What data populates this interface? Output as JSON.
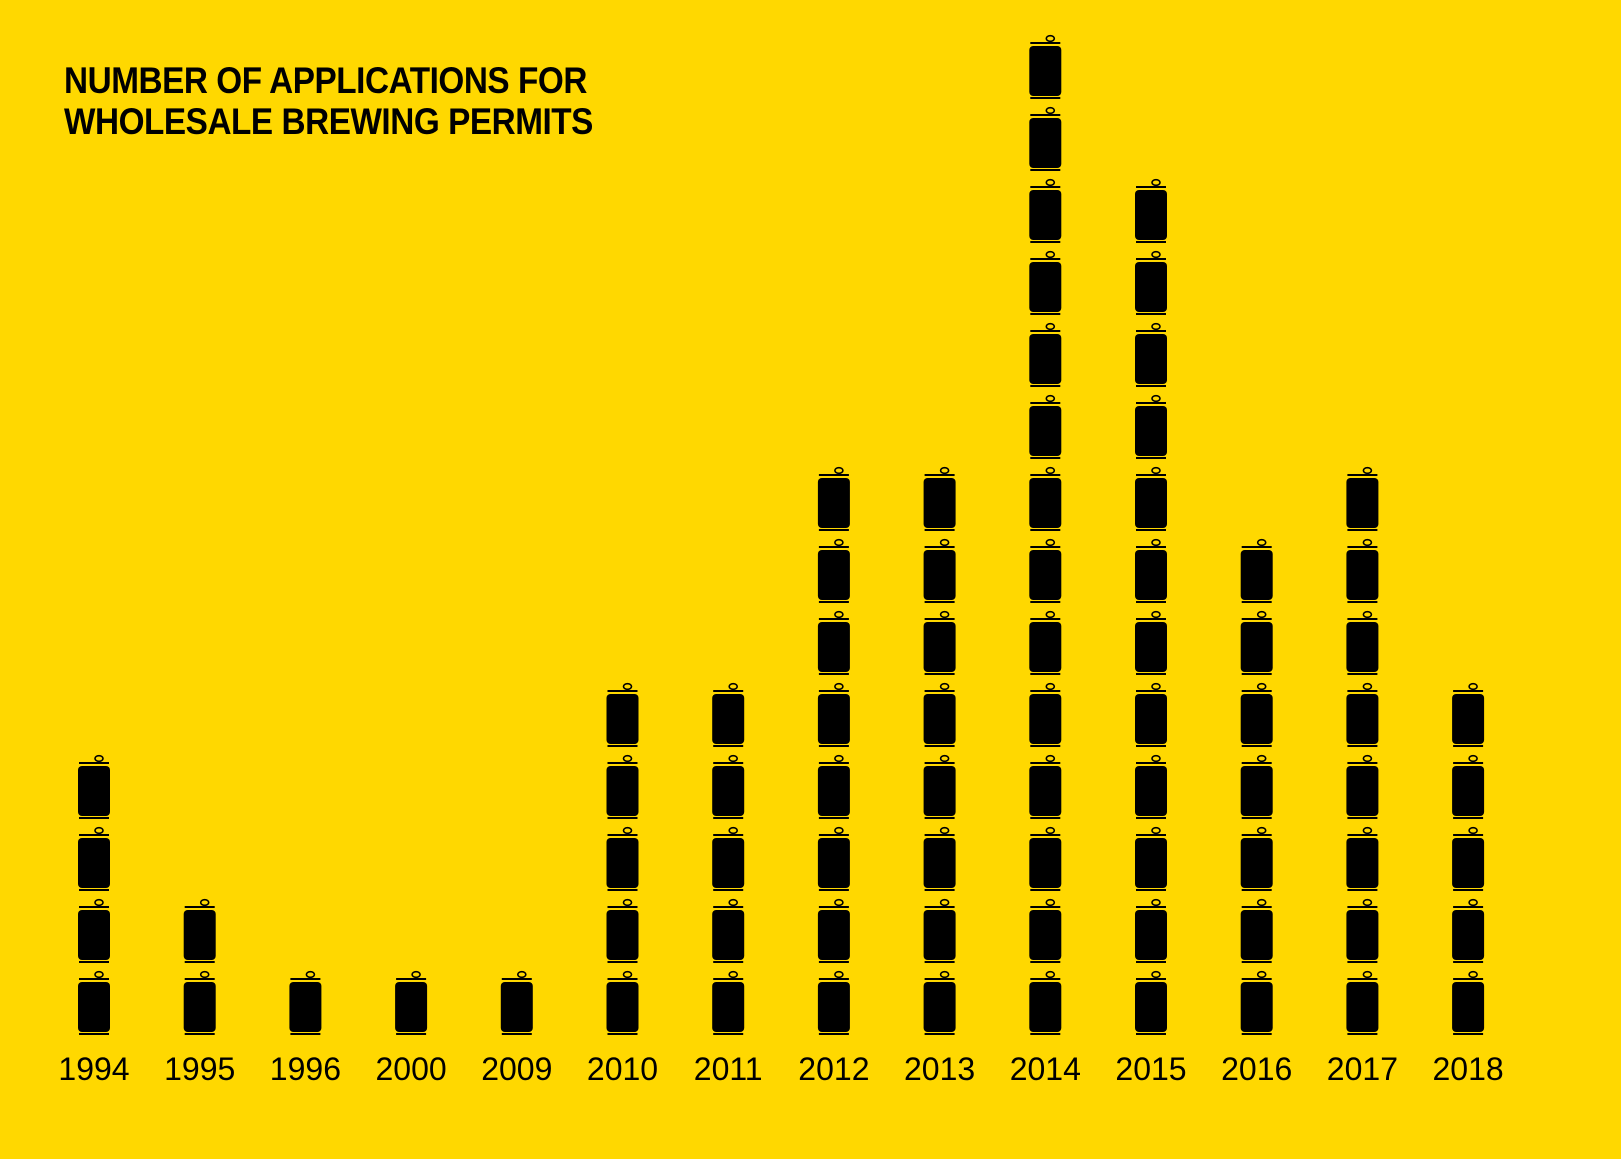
{
  "chart_data": {
    "type": "bar",
    "title_lines": [
      "NUMBER OF APPLICATIONS FOR",
      "WHOLESALE BREWING PERMITS"
    ],
    "categories": [
      "1994",
      "1995",
      "1996",
      "2000",
      "2009",
      "2010",
      "2011",
      "2012",
      "2013",
      "2014",
      "2015",
      "2016",
      "2017",
      "2018"
    ],
    "values": [
      4,
      2,
      1,
      1,
      1,
      5,
      5,
      8,
      8,
      14,
      12,
      7,
      8,
      5
    ],
    "unit_icon": "beer-can-icon",
    "colors": {
      "background": "#FFD800",
      "icon": "#000000",
      "text": "#000000"
    },
    "xlabel": "",
    "ylabel": "",
    "grid": false,
    "legend": "none"
  }
}
